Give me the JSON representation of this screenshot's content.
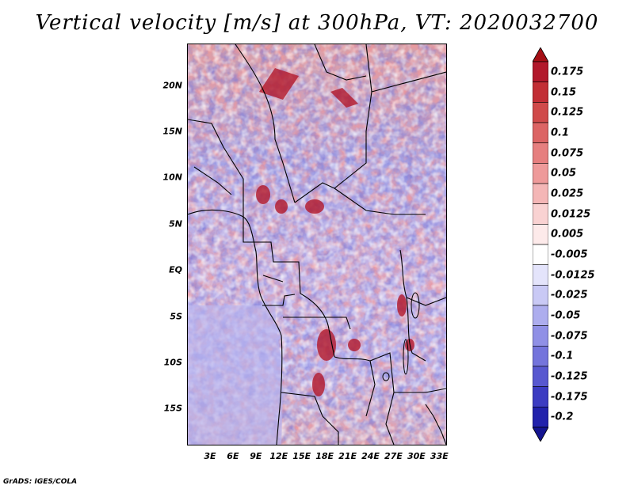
{
  "title": "Vertical velocity [m/s] at 300hPa, VT: 2020032700",
  "footer": "GrADS: IGES/COLA",
  "map": {
    "lon_range": [
      0,
      34
    ],
    "lat_range": [
      -19,
      24.5
    ],
    "y_ticks": [
      {
        "lat": 20,
        "label": "20N"
      },
      {
        "lat": 15,
        "label": "15N"
      },
      {
        "lat": 10,
        "label": "10N"
      },
      {
        "lat": 5,
        "label": "5N"
      },
      {
        "lat": 0,
        "label": "EQ"
      },
      {
        "lat": -5,
        "label": "5S"
      },
      {
        "lat": -10,
        "label": "10S"
      },
      {
        "lat": -15,
        "label": "15S"
      }
    ],
    "x_ticks": [
      {
        "lon": 3,
        "label": "3E"
      },
      {
        "lon": 6,
        "label": "6E"
      },
      {
        "lon": 9,
        "label": "9E"
      },
      {
        "lon": 12,
        "label": "12E"
      },
      {
        "lon": 15,
        "label": "15E"
      },
      {
        "lon": 18,
        "label": "18E"
      },
      {
        "lon": 21,
        "label": "21E"
      },
      {
        "lon": 24,
        "label": "24E"
      },
      {
        "lon": 27,
        "label": "27E"
      },
      {
        "lon": 30,
        "label": "30E"
      },
      {
        "lon": 33,
        "label": "33E"
      }
    ]
  },
  "colorbar": {
    "levels": [
      {
        "label": "0.175",
        "color": "#b2182b"
      },
      {
        "label": "0.15",
        "color": "#c22e35"
      },
      {
        "label": "0.125",
        "color": "#d04a4a"
      },
      {
        "label": "0.1",
        "color": "#dc6464"
      },
      {
        "label": "0.075",
        "color": "#e67f7f"
      },
      {
        "label": "0.05",
        "color": "#ee9a9a"
      },
      {
        "label": "0.025",
        "color": "#f4b6b6"
      },
      {
        "label": "0.0125",
        "color": "#f9d2d2"
      },
      {
        "label": "0.005",
        "color": "#fdeaea"
      },
      {
        "label": "-0.005",
        "color": "#ffffff"
      },
      {
        "label": "-0.0125",
        "color": "#e4e4fb"
      },
      {
        "label": "-0.025",
        "color": "#c9c9f5"
      },
      {
        "label": "-0.05",
        "color": "#adadee"
      },
      {
        "label": "-0.075",
        "color": "#9090e6"
      },
      {
        "label": "-0.1",
        "color": "#7474dc"
      },
      {
        "label": "-0.125",
        "color": "#5858d0"
      },
      {
        "label": "-0.175",
        "color": "#3c3cc2"
      },
      {
        "label": "-0.2",
        "color": "#2222ac"
      }
    ],
    "bottom_color": "#141490",
    "top_color": "#a50f15"
  }
}
